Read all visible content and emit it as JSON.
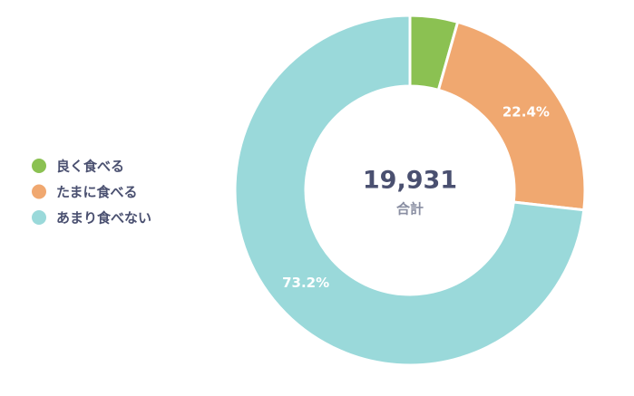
{
  "chart_data": {
    "type": "donut",
    "categories": [
      "良く食べる",
      "たまに食べる",
      "あまり食べない"
    ],
    "values": [
      4.4,
      22.4,
      73.2
    ],
    "value_labels": [
      null,
      "22.4%",
      "73.2%"
    ],
    "colors": [
      "#8bc152",
      "#f0a870",
      "#9ad9da"
    ],
    "center_value": {
      "value": 19931,
      "label": "19,931"
    },
    "center_caption": "合計",
    "legend": "left"
  }
}
